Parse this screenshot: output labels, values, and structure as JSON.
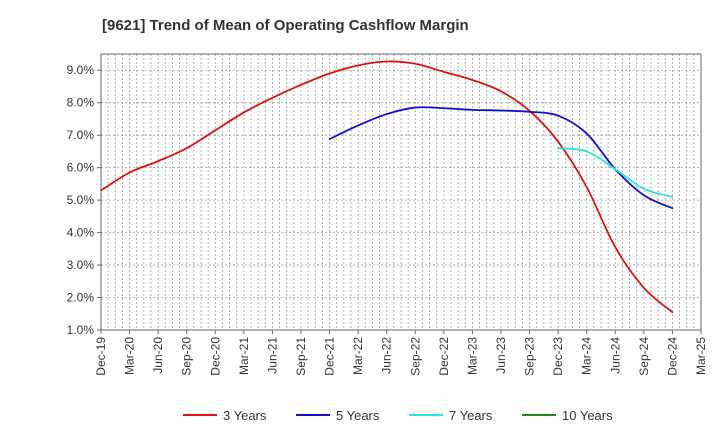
{
  "chart_data": {
    "type": "line",
    "title": "[9621]  Trend of Mean of Operating Cashflow Margin",
    "xlabel": "",
    "ylabel": "",
    "x": [
      "Dec-19",
      "Mar-20",
      "Jun-20",
      "Sep-20",
      "Dec-20",
      "Mar-21",
      "Jun-21",
      "Sep-21",
      "Dec-21",
      "Mar-22",
      "Jun-22",
      "Sep-22",
      "Dec-22",
      "Mar-23",
      "Jun-23",
      "Sep-23",
      "Dec-23",
      "Mar-24",
      "Jun-24",
      "Sep-24",
      "Dec-24",
      "Mar-25"
    ],
    "y_ticks": [
      "1.0%",
      "2.0%",
      "3.0%",
      "4.0%",
      "5.0%",
      "6.0%",
      "7.0%",
      "8.0%",
      "9.0%"
    ],
    "ylim": [
      1.0,
      9.5
    ],
    "grid": true,
    "legend_position": "bottom",
    "series": [
      {
        "name": "3 Years",
        "color": "#dd1111",
        "values": [
          5.3,
          5.85,
          6.2,
          6.6,
          7.15,
          7.7,
          8.15,
          8.55,
          8.9,
          9.15,
          9.27,
          9.2,
          8.95,
          8.7,
          8.35,
          7.75,
          6.8,
          5.4,
          3.55,
          2.3,
          1.55,
          null
        ]
      },
      {
        "name": "5 Years",
        "color": "#1111cc",
        "values": [
          null,
          null,
          null,
          null,
          null,
          null,
          null,
          null,
          6.88,
          7.3,
          7.65,
          7.85,
          7.83,
          7.78,
          7.76,
          7.72,
          7.6,
          7.05,
          5.95,
          5.15,
          4.75,
          null
        ]
      },
      {
        "name": "7 Years",
        "color": "#22e5e5",
        "values": [
          null,
          null,
          null,
          null,
          null,
          null,
          null,
          null,
          null,
          null,
          null,
          null,
          null,
          null,
          null,
          null,
          6.6,
          6.5,
          5.95,
          5.35,
          5.1,
          null
        ]
      },
      {
        "name": "10 Years",
        "color": "#228822",
        "values": [
          null,
          null,
          null,
          null,
          null,
          null,
          null,
          null,
          null,
          null,
          null,
          null,
          null,
          null,
          null,
          null,
          null,
          null,
          null,
          null,
          null,
          null
        ]
      }
    ]
  }
}
